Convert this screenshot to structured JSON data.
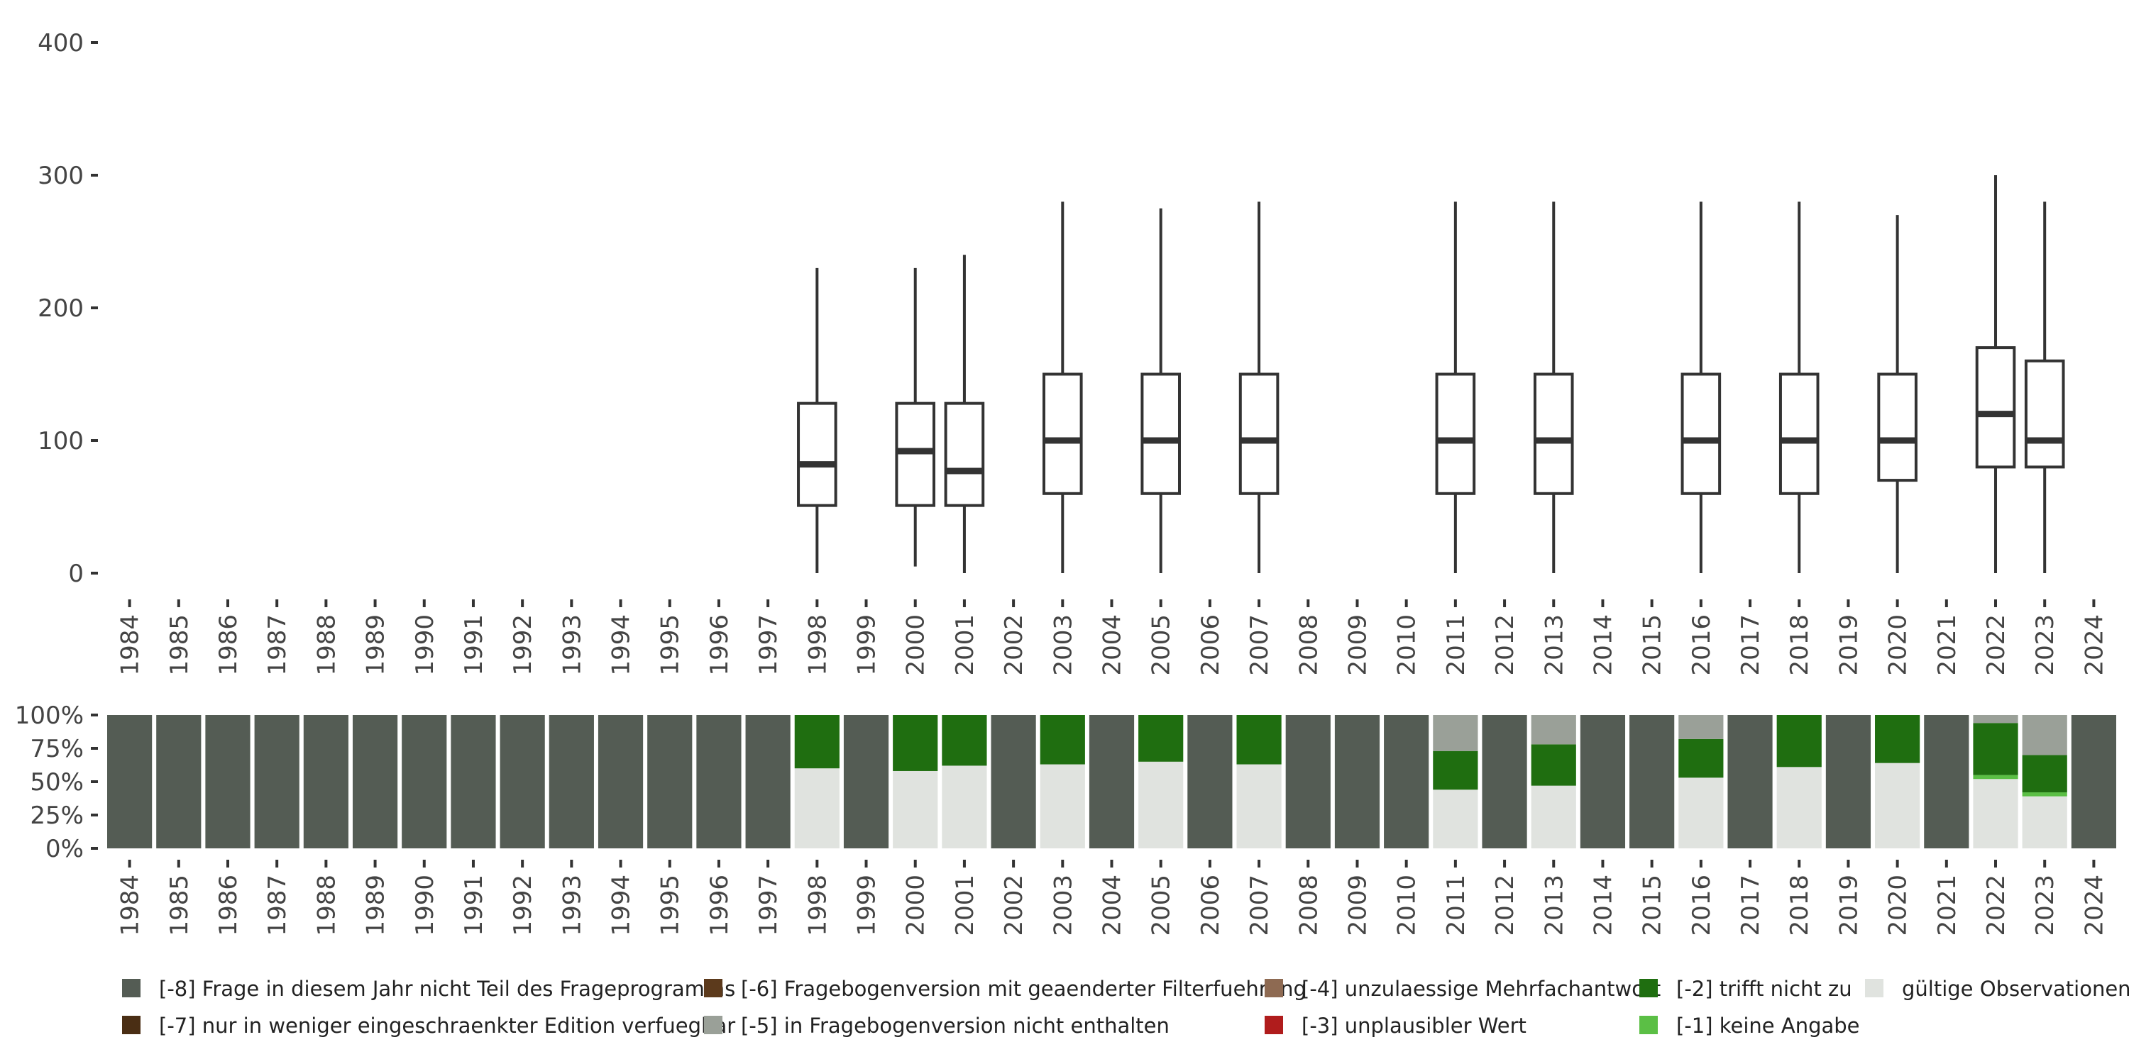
{
  "chart_data": [
    {
      "type": "boxplot",
      "ylim": [
        0,
        400
      ],
      "yticks": [
        "0",
        "100",
        "200",
        "300",
        "400"
      ],
      "years": [
        "1984",
        "1985",
        "1986",
        "1987",
        "1988",
        "1989",
        "1990",
        "1991",
        "1992",
        "1993",
        "1994",
        "1995",
        "1996",
        "1997",
        "1998",
        "1999",
        "2000",
        "2001",
        "2002",
        "2003",
        "2004",
        "2005",
        "2006",
        "2007",
        "2008",
        "2009",
        "2010",
        "2011",
        "2012",
        "2013",
        "2014",
        "2015",
        "2016",
        "2017",
        "2018",
        "2019",
        "2020",
        "2021",
        "2022",
        "2023",
        "2024"
      ],
      "boxes": [
        {
          "year": "1998",
          "min": 0,
          "q1": 51,
          "median": 82,
          "q3": 128,
          "max": 230
        },
        {
          "year": "2000",
          "min": 5,
          "q1": 51,
          "median": 92,
          "q3": 128,
          "max": 230
        },
        {
          "year": "2001",
          "min": 0,
          "q1": 51,
          "median": 77,
          "q3": 128,
          "max": 240
        },
        {
          "year": "2003",
          "min": 0,
          "q1": 60,
          "median": 100,
          "q3": 150,
          "max": 280
        },
        {
          "year": "2005",
          "min": 0,
          "q1": 60,
          "median": 100,
          "q3": 150,
          "max": 275
        },
        {
          "year": "2007",
          "min": 0,
          "q1": 60,
          "median": 100,
          "q3": 150,
          "max": 280
        },
        {
          "year": "2011",
          "min": 0,
          "q1": 60,
          "median": 100,
          "q3": 150,
          "max": 280
        },
        {
          "year": "2013",
          "min": 0,
          "q1": 60,
          "median": 100,
          "q3": 150,
          "max": 280
        },
        {
          "year": "2016",
          "min": 0,
          "q1": 60,
          "median": 100,
          "q3": 150,
          "max": 280
        },
        {
          "year": "2018",
          "min": 0,
          "q1": 60,
          "median": 100,
          "q3": 150,
          "max": 280
        },
        {
          "year": "2020",
          "min": 0,
          "q1": 70,
          "median": 100,
          "q3": 150,
          "max": 270
        },
        {
          "year": "2022",
          "min": 0,
          "q1": 80,
          "median": 120,
          "q3": 170,
          "max": 300
        },
        {
          "year": "2023",
          "min": 0,
          "q1": 80,
          "median": 100,
          "q3": 160,
          "max": 280
        }
      ]
    },
    {
      "type": "stacked_bar",
      "ylim": [
        0,
        100
      ],
      "yticks": [
        "0%",
        "25%",
        "50%",
        "75%",
        "100%"
      ],
      "categories": [
        "1984",
        "1985",
        "1986",
        "1987",
        "1988",
        "1989",
        "1990",
        "1991",
        "1992",
        "1993",
        "1994",
        "1995",
        "1996",
        "1997",
        "1998",
        "1999",
        "2000",
        "2001",
        "2002",
        "2003",
        "2004",
        "2005",
        "2006",
        "2007",
        "2008",
        "2009",
        "2010",
        "2011",
        "2012",
        "2013",
        "2014",
        "2015",
        "2016",
        "2017",
        "2018",
        "2019",
        "2020",
        "2021",
        "2022",
        "2023",
        "2024"
      ],
      "stack_order": [
        "valid",
        "m1",
        "m2",
        "m5",
        "m8"
      ],
      "colors": {
        "m8": "#545c54",
        "m7": "#4a2e14",
        "m6": "#5c3a1c",
        "m5": "#9aa098",
        "m4": "#8e6a52",
        "m3": "#b01c1c",
        "m2": "#1f6e10",
        "m1": "#5bbf45",
        "valid": "#e0e3df"
      },
      "bars": [
        {
          "year": "1984",
          "valid": 0,
          "m1": 0,
          "m2": 0,
          "m5": 0,
          "m8": 100
        },
        {
          "year": "1985",
          "valid": 0,
          "m1": 0,
          "m2": 0,
          "m5": 0,
          "m8": 100
        },
        {
          "year": "1986",
          "valid": 0,
          "m1": 0,
          "m2": 0,
          "m5": 0,
          "m8": 100
        },
        {
          "year": "1987",
          "valid": 0,
          "m1": 0,
          "m2": 0,
          "m5": 0,
          "m8": 100
        },
        {
          "year": "1988",
          "valid": 0,
          "m1": 0,
          "m2": 0,
          "m5": 0,
          "m8": 100
        },
        {
          "year": "1989",
          "valid": 0,
          "m1": 0,
          "m2": 0,
          "m5": 0,
          "m8": 100
        },
        {
          "year": "1990",
          "valid": 0,
          "m1": 0,
          "m2": 0,
          "m5": 0,
          "m8": 100
        },
        {
          "year": "1991",
          "valid": 0,
          "m1": 0,
          "m2": 0,
          "m5": 0,
          "m8": 100
        },
        {
          "year": "1992",
          "valid": 0,
          "m1": 0,
          "m2": 0,
          "m5": 0,
          "m8": 100
        },
        {
          "year": "1993",
          "valid": 0,
          "m1": 0,
          "m2": 0,
          "m5": 0,
          "m8": 100
        },
        {
          "year": "1994",
          "valid": 0,
          "m1": 0,
          "m2": 0,
          "m5": 0,
          "m8": 100
        },
        {
          "year": "1995",
          "valid": 0,
          "m1": 0,
          "m2": 0,
          "m5": 0,
          "m8": 100
        },
        {
          "year": "1996",
          "valid": 0,
          "m1": 0,
          "m2": 0,
          "m5": 0,
          "m8": 100
        },
        {
          "year": "1997",
          "valid": 0,
          "m1": 0,
          "m2": 0,
          "m5": 0,
          "m8": 100
        },
        {
          "year": "1998",
          "valid": 60,
          "m1": 0,
          "m2": 40,
          "m5": 0,
          "m8": 0
        },
        {
          "year": "1999",
          "valid": 0,
          "m1": 0,
          "m2": 0,
          "m5": 0,
          "m8": 100
        },
        {
          "year": "2000",
          "valid": 58,
          "m1": 0,
          "m2": 42,
          "m5": 0,
          "m8": 0
        },
        {
          "year": "2001",
          "valid": 62,
          "m1": 0,
          "m2": 38,
          "m5": 0,
          "m8": 0
        },
        {
          "year": "2002",
          "valid": 0,
          "m1": 0,
          "m2": 0,
          "m5": 0,
          "m8": 100
        },
        {
          "year": "2003",
          "valid": 63,
          "m1": 0,
          "m2": 37,
          "m5": 0,
          "m8": 0
        },
        {
          "year": "2004",
          "valid": 0,
          "m1": 0,
          "m2": 0,
          "m5": 0,
          "m8": 100
        },
        {
          "year": "2005",
          "valid": 65,
          "m1": 0,
          "m2": 35,
          "m5": 0,
          "m8": 0
        },
        {
          "year": "2006",
          "valid": 0,
          "m1": 0,
          "m2": 0,
          "m5": 0,
          "m8": 100
        },
        {
          "year": "2007",
          "valid": 63,
          "m1": 0,
          "m2": 37,
          "m5": 0,
          "m8": 0
        },
        {
          "year": "2008",
          "valid": 0,
          "m1": 0,
          "m2": 0,
          "m5": 0,
          "m8": 100
        },
        {
          "year": "2009",
          "valid": 0,
          "m1": 0,
          "m2": 0,
          "m5": 0,
          "m8": 100
        },
        {
          "year": "2010",
          "valid": 0,
          "m1": 0,
          "m2": 0,
          "m5": 0,
          "m8": 100
        },
        {
          "year": "2011",
          "valid": 44,
          "m1": 0,
          "m2": 29,
          "m5": 27,
          "m8": 0
        },
        {
          "year": "2012",
          "valid": 0,
          "m1": 0,
          "m2": 0,
          "m5": 0,
          "m8": 100
        },
        {
          "year": "2013",
          "valid": 47,
          "m1": 0,
          "m2": 31,
          "m5": 22,
          "m8": 0
        },
        {
          "year": "2014",
          "valid": 0,
          "m1": 0,
          "m2": 0,
          "m5": 0,
          "m8": 100
        },
        {
          "year": "2015",
          "valid": 0,
          "m1": 0,
          "m2": 0,
          "m5": 0,
          "m8": 100
        },
        {
          "year": "2016",
          "valid": 53,
          "m1": 0,
          "m2": 29,
          "m5": 18,
          "m8": 0
        },
        {
          "year": "2017",
          "valid": 0,
          "m1": 0,
          "m2": 0,
          "m5": 0,
          "m8": 100
        },
        {
          "year": "2018",
          "valid": 61,
          "m1": 0,
          "m2": 39,
          "m5": 0,
          "m8": 0
        },
        {
          "year": "2019",
          "valid": 0,
          "m1": 0,
          "m2": 0,
          "m5": 0,
          "m8": 100
        },
        {
          "year": "2020",
          "valid": 64,
          "m1": 0,
          "m2": 36,
          "m5": 0,
          "m8": 0
        },
        {
          "year": "2021",
          "valid": 0,
          "m1": 0,
          "m2": 0,
          "m5": 0,
          "m8": 100
        },
        {
          "year": "2022",
          "valid": 52,
          "m1": 3,
          "m2": 39,
          "m5": 6,
          "m8": 0
        },
        {
          "year": "2023",
          "valid": 39,
          "m1": 3,
          "m2": 28,
          "m5": 30,
          "m8": 0
        },
        {
          "year": "2024",
          "valid": 0,
          "m1": 0,
          "m2": 0,
          "m5": 0,
          "m8": 100
        }
      ]
    }
  ],
  "legend": [
    {
      "key": "m8",
      "label": "[-8] Frage in diesem Jahr nicht Teil des Frageprogramms",
      "color": "#545c54"
    },
    {
      "key": "m7",
      "label": "[-7] nur in weniger eingeschraenkter Edition verfuegbar",
      "color": "#4a2e14"
    },
    {
      "key": "m6",
      "label": "[-6] Fragebogenversion mit geaenderter Filterfuehrung",
      "color": "#5c3a1c"
    },
    {
      "key": "m5",
      "label": "[-5] in Fragebogenversion nicht enthalten",
      "color": "#9aa098"
    },
    {
      "key": "m4",
      "label": "[-4] unzulaessige Mehrfachantwort",
      "color": "#8e6a52"
    },
    {
      "key": "m3",
      "label": "[-3] unplausibler Wert",
      "color": "#b01c1c"
    },
    {
      "key": "m2",
      "label": "[-2] trifft nicht zu",
      "color": "#1f6e10"
    },
    {
      "key": "m1",
      "label": "[-1] keine Angabe",
      "color": "#5bbf45"
    },
    {
      "key": "valid",
      "label": "gültige Observationen",
      "color": "#e0e3df"
    }
  ]
}
